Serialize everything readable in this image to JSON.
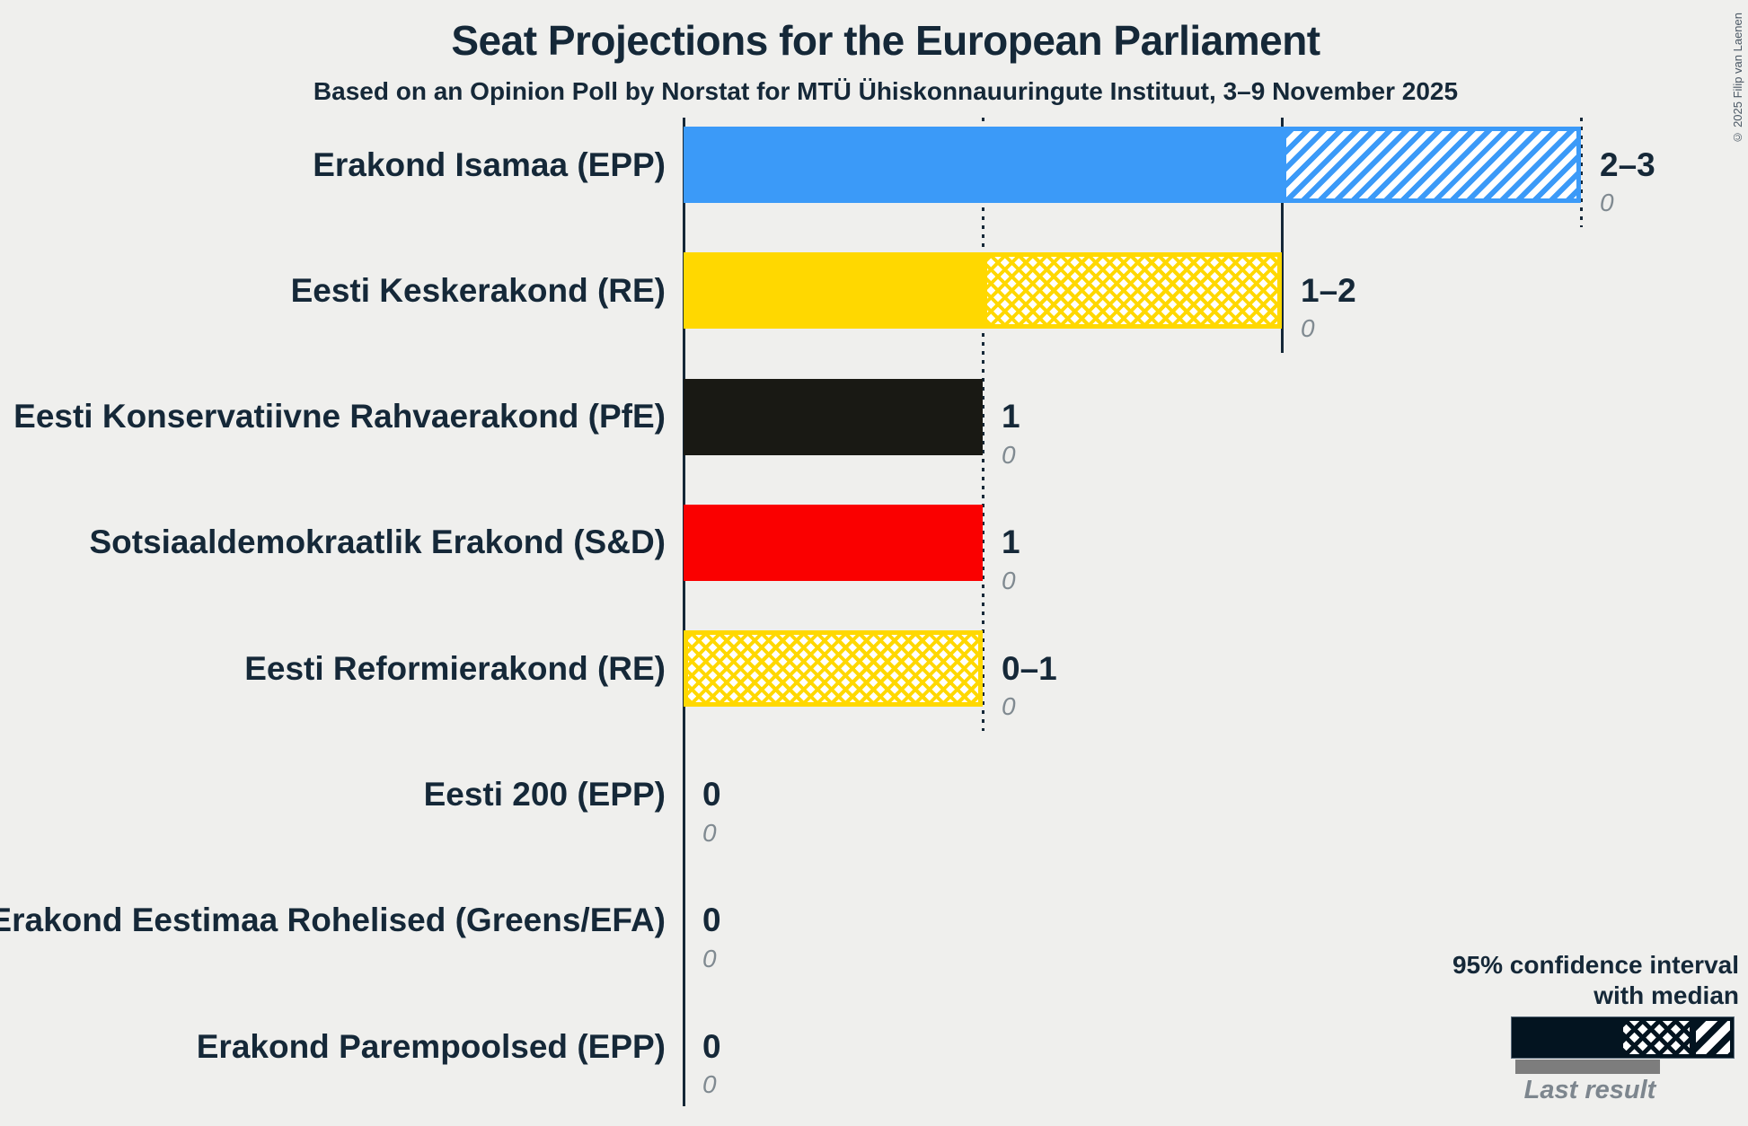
{
  "title": "Seat Projections for the European Parliament",
  "subtitle": "Based on an Opinion Poll by Norstat for MTÜ Ühiskonnauuringute Instituut, 3–9 November 2025",
  "copyright": "© 2025 Filip van Laenen",
  "legend": {
    "line1": "95% confidence interval",
    "line2": "with median",
    "last_result_label": "Last result"
  },
  "colors": {
    "background": "#efefed",
    "ink": "#152838",
    "legend_navy": "#031420",
    "gray_label": "#808a91",
    "gray_bar": "#7d7d7d"
  },
  "chart_data": {
    "type": "bar",
    "orientation": "horizontal",
    "x_axis": {
      "min": 0,
      "max": 3,
      "gridlines": [
        {
          "value": 1,
          "style": "dotted"
        },
        {
          "value": 2,
          "style": "solid"
        },
        {
          "value": 3,
          "style": "dotted"
        }
      ]
    },
    "legend_note": "solid = lower bound, crosshatch = lower-to-median, diagonal = median-to-upper",
    "rows": [
      {
        "party": "Erakond Isamaa (EPP)",
        "color": "#3b9af8",
        "ci_low": 2,
        "median": 2,
        "ci_high": 3,
        "label": "2–3",
        "last_result": "0"
      },
      {
        "party": "Eesti Keskerakond (RE)",
        "color": "#ffd800",
        "ci_low": 1,
        "median": 2,
        "ci_high": 2,
        "label": "1–2",
        "last_result": "0"
      },
      {
        "party": "Eesti Konservatiivne Rahvaerakond (PfE)",
        "color": "#191914",
        "ci_low": 1,
        "median": 1,
        "ci_high": 1,
        "label": "1",
        "last_result": "0"
      },
      {
        "party": "Sotsiaaldemokraatlik Erakond (S&D)",
        "color": "#fa0000",
        "ci_low": 1,
        "median": 1,
        "ci_high": 1,
        "label": "1",
        "last_result": "0"
      },
      {
        "party": "Eesti Reformierakond (RE)",
        "color": "#ffd800",
        "ci_low": 0,
        "median": 1,
        "ci_high": 1,
        "label": "0–1",
        "last_result": "0"
      },
      {
        "party": "Eesti 200 (EPP)",
        "color": "#3b9af8",
        "ci_low": 0,
        "median": 0,
        "ci_high": 0,
        "label": "0",
        "last_result": "0"
      },
      {
        "party": "Erakond Eestimaa Rohelised (Greens/EFA)",
        "color": "#5a9b3c",
        "ci_low": 0,
        "median": 0,
        "ci_high": 0,
        "label": "0",
        "last_result": "0"
      },
      {
        "party": "Erakond Parempoolsed (EPP)",
        "color": "#00b0f0",
        "ci_low": 0,
        "median": 0,
        "ci_high": 0,
        "label": "0",
        "last_result": "0"
      }
    ]
  }
}
